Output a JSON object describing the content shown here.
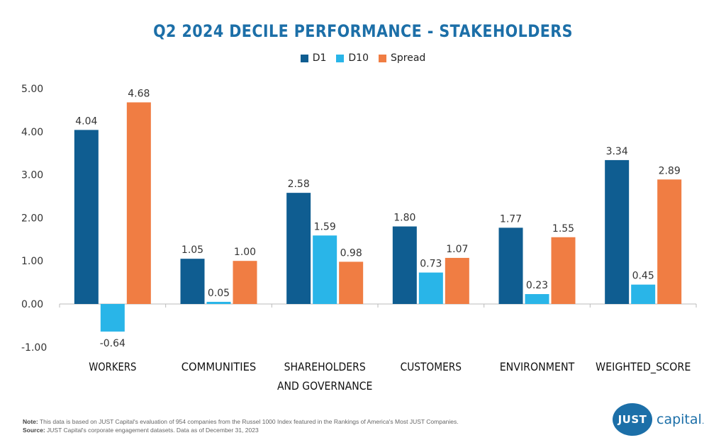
{
  "title": "Q2 2024 DECILE PERFORMANCE - STAKEHOLDERS",
  "legend": [
    {
      "name": "D1",
      "color": "#0f5d91"
    },
    {
      "name": "D10",
      "color": "#29b5e8"
    },
    {
      "name": "Spread",
      "color": "#f07d43"
    }
  ],
  "chart_data": {
    "type": "bar",
    "title": "Q2 2024 DECILE PERFORMANCE - STAKEHOLDERS",
    "categories": [
      [
        "WORKERS"
      ],
      [
        "COMMUNITIES"
      ],
      [
        "SHAREHOLDERS",
        "AND GOVERNANCE"
      ],
      [
        "CUSTOMERS"
      ],
      [
        "ENVIRONMENT"
      ],
      [
        "WEIGHTED_SCORE"
      ]
    ],
    "series": [
      {
        "name": "D1",
        "color": "#0f5d91",
        "values": [
          4.04,
          1.05,
          2.58,
          1.8,
          1.77,
          3.34
        ]
      },
      {
        "name": "D10",
        "color": "#29b5e8",
        "values": [
          -0.64,
          0.05,
          1.59,
          0.73,
          0.23,
          0.45
        ]
      },
      {
        "name": "Spread",
        "color": "#f07d43",
        "values": [
          4.68,
          1.0,
          0.98,
          1.07,
          1.55,
          2.89
        ]
      }
    ],
    "ylim": [
      -1,
      5
    ],
    "yticks": [
      "-1.00",
      "0.00",
      "1.00",
      "2.00",
      "3.00",
      "4.00",
      "5.00"
    ],
    "value_labels": [
      [
        "4.04",
        "1.05",
        "2.58",
        "1.80",
        "1.77",
        "3.34"
      ],
      [
        "-0.64",
        "0.05",
        "1.59",
        "0.73",
        "0.23",
        "0.45"
      ],
      [
        "4.68",
        "1.00",
        "0.98",
        "1.07",
        "1.55",
        "2.89"
      ]
    ],
    "xlabel": "",
    "ylabel": "",
    "grid": false,
    "legend_position": "top-center"
  },
  "footer": {
    "note_label": "Note:",
    "note_text": " This data is based on JUST Capital's evaluation of 954 companies from the Russel 1000 Index featured in the Rankings of America's Most JUST Companies.",
    "source_label": "Source:",
    "source_text": " JUST Capital's corporate engagement datasets. Data as of December 31, 2023"
  },
  "logo": {
    "mark": "JUST",
    "text": "capital",
    "symbol": "."
  }
}
